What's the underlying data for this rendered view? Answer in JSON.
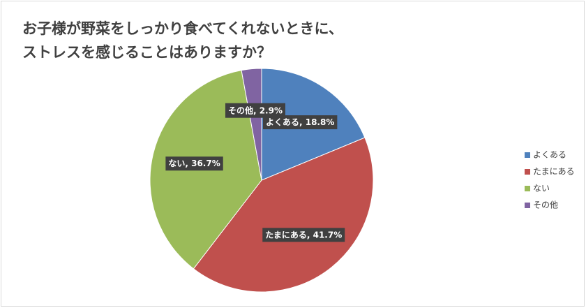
{
  "chart_data": {
    "type": "pie",
    "title": [
      "お子様が野菜をしっかり食べてくれないときに、",
      "ストレスを感じることはありますか？"
    ],
    "categories": [
      "よくある",
      "たまにある",
      "ない",
      "その他"
    ],
    "values": [
      18.8,
      41.7,
      36.7,
      2.9
    ],
    "value_labels": [
      "よくある, 18.8%",
      "たまにある, 41.7%",
      "ない, 36.7%",
      "その他, 2.9%"
    ],
    "colors": [
      "#4f81bd",
      "#c0504d",
      "#9bbb59",
      "#8064a2"
    ],
    "legend": "right"
  }
}
